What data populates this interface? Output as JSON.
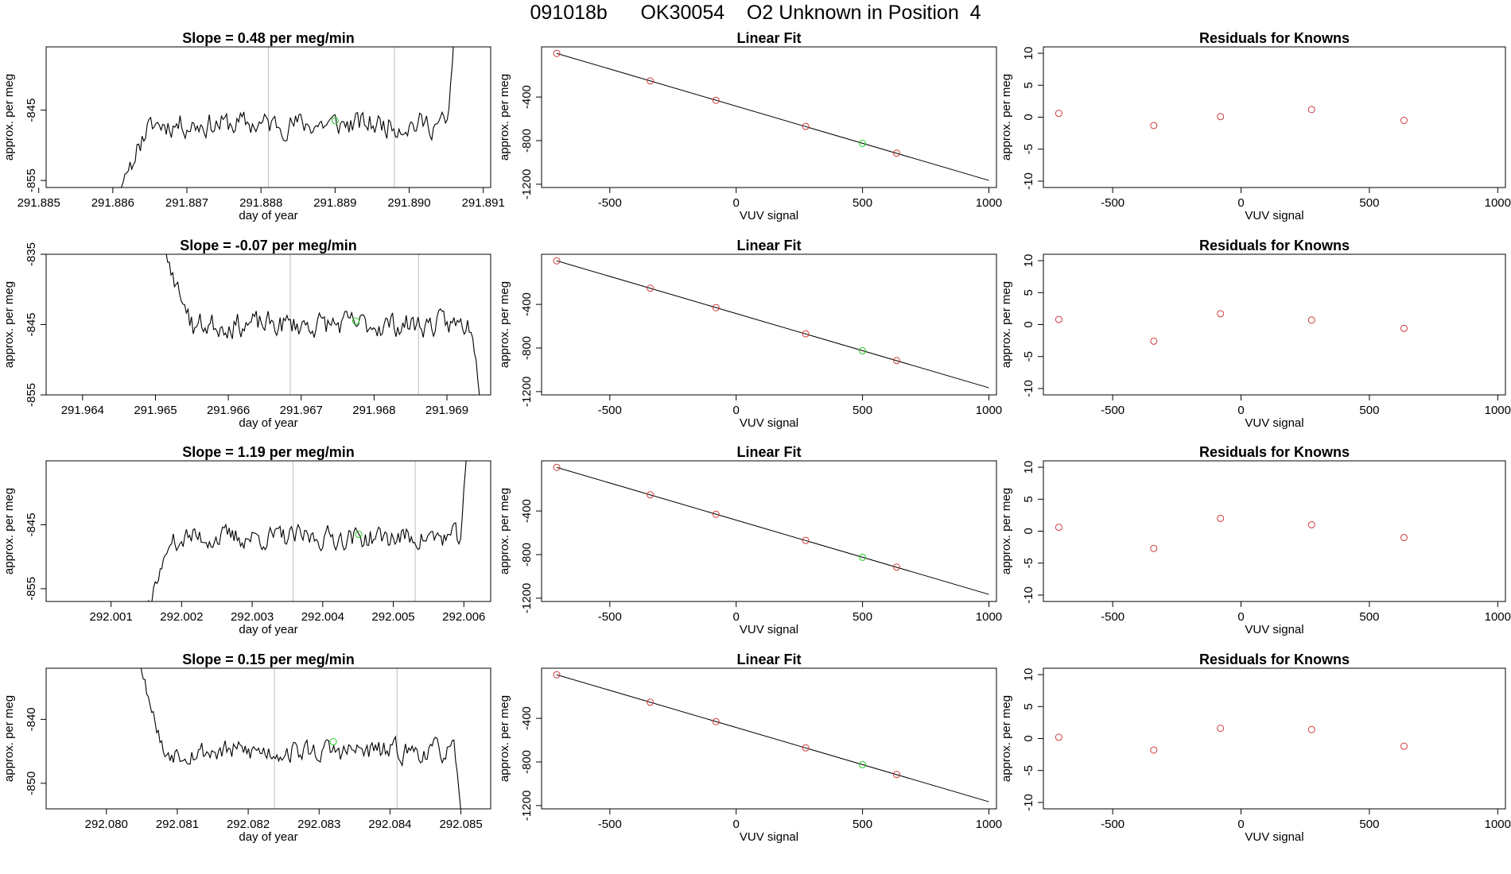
{
  "page_title": "091018b      OK30054    O2 Unknown in Position  4",
  "colors": {
    "line": "#000000",
    "known": "#cd3b3b",
    "unknown": "#22cc22",
    "vline": "#bdbdbd",
    "axis": "#000000"
  },
  "chart_data": [
    {
      "type": "line",
      "panel": "time",
      "row": 0,
      "title": "Slope =  0.48  per meg/min",
      "xlabel": "day of year",
      "ylabel": "approx. per meg",
      "xlim": [
        291.8851,
        291.8911
      ],
      "ylim": [
        -856,
        -836
      ],
      "xticks": [
        291.885,
        291.886,
        291.887,
        291.888,
        291.889,
        291.89,
        291.891
      ],
      "xtick_labels": [
        "291.885",
        "291.886",
        "291.887",
        "291.888",
        "291.889",
        "291.890",
        "291.891"
      ],
      "yticks": [
        -845,
        -855
      ],
      "ytick_labels": [
        "-845",
        "-855"
      ],
      "vlines": [
        291.8881,
        291.8898
      ],
      "start": 291.886,
      "end": 291.89063,
      "n": 200,
      "base": -847,
      "noise": 2.8,
      "seed": 11,
      "rise": {
        "from": -858,
        "t_end": 291.8865
      },
      "tail": {
        "t": 291.89053,
        "to": -830
      },
      "unknown_point": {
        "x": 291.889,
        "y": -846.5
      }
    },
    {
      "type": "scatter",
      "panel": "fit",
      "row": 0,
      "title": "Linear Fit",
      "xlabel": "VUV signal",
      "ylabel": "approx. per meg",
      "xlim": [
        -770,
        1030
      ],
      "ylim": [
        -1230,
        60
      ],
      "xticks": [
        -500,
        0,
        500,
        1000
      ],
      "xtick_labels": [
        "-500",
        "0",
        "500",
        "1000"
      ],
      "yticks": [
        -400,
        -800,
        -1200
      ],
      "ytick_labels": [
        "-400",
        "-800",
        "-1200"
      ],
      "fit_line": {
        "x": [
          -710,
          1000
        ],
        "y": [
          0,
          -1165
        ]
      },
      "known_points": {
        "x": [
          -710,
          -340,
          -80,
          275,
          635
        ],
        "y": [
          0,
          -252,
          -430,
          -670,
          -915
        ]
      },
      "unknown_point": {
        "x": 500,
        "y": -825
      }
    },
    {
      "type": "scatter",
      "panel": "residuals",
      "row": 0,
      "title": "Residuals for Knowns",
      "xlabel": "VUV signal",
      "ylabel": "approx. per meg",
      "xlim": [
        -770,
        1030
      ],
      "ylim": [
        -11,
        11
      ],
      "xticks": [
        -500,
        0,
        500,
        1000
      ],
      "xtick_labels": [
        "-500",
        "0",
        "500",
        "1000"
      ],
      "yticks": [
        10,
        5,
        0,
        -5,
        -10
      ],
      "ytick_labels": [
        "10",
        "5",
        "0",
        "-5",
        "-10"
      ],
      "points": {
        "x": [
          -710,
          -340,
          -80,
          275,
          635
        ],
        "y": [
          0.6,
          -1.3,
          0.1,
          1.2,
          -0.5
        ]
      }
    },
    {
      "type": "line",
      "panel": "time",
      "row": 1,
      "title": "Slope =  -0.07  per meg/min",
      "xlabel": "day of year",
      "ylabel": "approx. per meg",
      "xlim": [
        291.9635,
        291.9696
      ],
      "ylim": [
        -855,
        -835
      ],
      "xticks": [
        291.964,
        291.965,
        291.966,
        291.967,
        291.968,
        291.969
      ],
      "xtick_labels": [
        "291.964",
        "291.965",
        "291.966",
        "291.967",
        "291.968",
        "291.969"
      ],
      "yticks": [
        -835,
        -845,
        -855
      ],
      "ytick_labels": [
        "-835",
        "-845",
        "-855"
      ],
      "vlines": [
        291.96685,
        291.96861
      ],
      "start": 291.96505,
      "end": 291.96947,
      "n": 190,
      "base": -845,
      "noise": 2.8,
      "seed": 23,
      "rise": {
        "from": -833,
        "t_end": 291.9655
      },
      "tail": {
        "t": 291.96935,
        "to": -857
      },
      "unknown_point": {
        "x": 291.96775,
        "y": -844.5
      }
    },
    {
      "type": "scatter",
      "panel": "fit",
      "row": 1,
      "title": "Linear Fit",
      "xlabel": "VUV signal",
      "ylabel": "approx. per meg",
      "xlim": [
        -770,
        1030
      ],
      "ylim": [
        -1230,
        60
      ],
      "xticks": [
        -500,
        0,
        500,
        1000
      ],
      "xtick_labels": [
        "-500",
        "0",
        "500",
        "1000"
      ],
      "yticks": [
        -400,
        -800,
        -1200
      ],
      "ytick_labels": [
        "-400",
        "-800",
        "-1200"
      ],
      "fit_line": {
        "x": [
          -710,
          1000
        ],
        "y": [
          0,
          -1165
        ]
      },
      "known_points": {
        "x": [
          -710,
          -340,
          -80,
          275,
          635
        ],
        "y": [
          0,
          -252,
          -430,
          -670,
          -915
        ]
      },
      "unknown_point": {
        "x": 500,
        "y": -825
      }
    },
    {
      "type": "scatter",
      "panel": "residuals",
      "row": 1,
      "title": "Residuals for Knowns",
      "xlabel": "VUV signal",
      "ylabel": "approx. per meg",
      "xlim": [
        -770,
        1030
      ],
      "ylim": [
        -11,
        11
      ],
      "xticks": [
        -500,
        0,
        500,
        1000
      ],
      "xtick_labels": [
        "-500",
        "0",
        "500",
        "1000"
      ],
      "yticks": [
        10,
        5,
        0,
        -5,
        -10
      ],
      "ytick_labels": [
        "10",
        "5",
        "0",
        "-5",
        "-10"
      ],
      "points": {
        "x": [
          -710,
          -340,
          -80,
          275,
          635
        ],
        "y": [
          0.8,
          -2.6,
          1.7,
          0.7,
          -0.6
        ]
      }
    },
    {
      "type": "line",
      "panel": "time",
      "row": 2,
      "title": "Slope =  1.19  per meg/min",
      "xlabel": "day of year",
      "ylabel": "approx. per meg",
      "xlim": [
        292.00008,
        292.00638
      ],
      "ylim": [
        -857,
        -835
      ],
      "xticks": [
        292.001,
        292.002,
        292.003,
        292.004,
        292.005,
        292.006
      ],
      "xtick_labels": [
        "292.001",
        "292.002",
        "292.003",
        "292.004",
        "292.005",
        "292.006"
      ],
      "yticks": [
        -845,
        -855
      ],
      "ytick_labels": [
        "-845",
        "-855"
      ],
      "vlines": [
        292.00358,
        292.00531
      ],
      "start": 292.00144,
      "end": 292.00607,
      "n": 200,
      "base": -847,
      "noise": 2.8,
      "seed": 37,
      "rise": {
        "from": -860,
        "t_end": 292.0019
      },
      "tail": {
        "t": 292.00595,
        "to": -830
      },
      "unknown_point": {
        "x": 292.00451,
        "y": -846.5
      }
    },
    {
      "type": "scatter",
      "panel": "fit",
      "row": 2,
      "title": "Linear Fit",
      "xlabel": "VUV signal",
      "ylabel": "approx. per meg",
      "xlim": [
        -770,
        1030
      ],
      "ylim": [
        -1230,
        60
      ],
      "xticks": [
        -500,
        0,
        500,
        1000
      ],
      "xtick_labels": [
        "-500",
        "0",
        "500",
        "1000"
      ],
      "yticks": [
        -400,
        -800,
        -1200
      ],
      "ytick_labels": [
        "-400",
        "-800",
        "-1200"
      ],
      "fit_line": {
        "x": [
          -710,
          1000
        ],
        "y": [
          0,
          -1165
        ]
      },
      "known_points": {
        "x": [
          -710,
          -340,
          -80,
          275,
          635
        ],
        "y": [
          0,
          -252,
          -430,
          -670,
          -915
        ]
      },
      "unknown_point": {
        "x": 500,
        "y": -825
      }
    },
    {
      "type": "scatter",
      "panel": "residuals",
      "row": 2,
      "title": "Residuals for Knowns",
      "xlabel": "VUV signal",
      "ylabel": "approx. per meg",
      "xlim": [
        -770,
        1030
      ],
      "ylim": [
        -11,
        11
      ],
      "xticks": [
        -500,
        0,
        500,
        1000
      ],
      "xtick_labels": [
        "-500",
        "0",
        "500",
        "1000"
      ],
      "yticks": [
        10,
        5,
        0,
        -5,
        -10
      ],
      "ytick_labels": [
        "10",
        "5",
        "0",
        "-5",
        "-10"
      ],
      "points": {
        "x": [
          -710,
          -340,
          -80,
          275,
          635
        ],
        "y": [
          0.6,
          -2.7,
          2.0,
          1.0,
          -1.0
        ]
      }
    },
    {
      "type": "line",
      "panel": "time",
      "row": 3,
      "title": "Slope =  0.15  per meg/min",
      "xlabel": "day of year",
      "ylabel": "approx. per meg",
      "xlim": [
        292.07915,
        292.08542
      ],
      "ylim": [
        -854,
        -832
      ],
      "xticks": [
        292.08,
        292.081,
        292.082,
        292.083,
        292.084,
        292.085
      ],
      "xtick_labels": [
        "292.080",
        "292.081",
        "292.082",
        "292.083",
        "292.084",
        "292.085"
      ],
      "yticks": [
        -840,
        -850
      ],
      "ytick_labels": [
        "-840",
        "-850"
      ],
      "vlines": [
        292.08237,
        292.0841
      ],
      "start": 292.08045,
      "end": 292.08502,
      "n": 195,
      "base": -845,
      "noise": 2.8,
      "seed": 53,
      "rise": {
        "from": -830,
        "t_end": 292.0808
      },
      "tail": {
        "t": 292.0849,
        "to": -856
      },
      "unknown_point": {
        "x": 292.0832,
        "y": -843.5
      }
    },
    {
      "type": "scatter",
      "panel": "fit",
      "row": 3,
      "title": "Linear Fit",
      "xlabel": "VUV signal",
      "ylabel": "approx. per meg",
      "xlim": [
        -770,
        1030
      ],
      "ylim": [
        -1230,
        60
      ],
      "xticks": [
        -500,
        0,
        500,
        1000
      ],
      "xtick_labels": [
        "-500",
        "0",
        "500",
        "1000"
      ],
      "yticks": [
        -400,
        -800,
        -1200
      ],
      "ytick_labels": [
        "-400",
        "-800",
        "-1200"
      ],
      "fit_line": {
        "x": [
          -710,
          1000
        ],
        "y": [
          0,
          -1165
        ]
      },
      "known_points": {
        "x": [
          -710,
          -340,
          -80,
          275,
          635
        ],
        "y": [
          0,
          -252,
          -430,
          -670,
          -915
        ]
      },
      "unknown_point": {
        "x": 500,
        "y": -825
      }
    },
    {
      "type": "scatter",
      "panel": "residuals",
      "row": 3,
      "title": "Residuals for Knowns",
      "xlabel": "VUV signal",
      "ylabel": "approx. per meg",
      "xlim": [
        -770,
        1030
      ],
      "ylim": [
        -11,
        11
      ],
      "xticks": [
        -500,
        0,
        500,
        1000
      ],
      "xtick_labels": [
        "-500",
        "0",
        "500",
        "1000"
      ],
      "yticks": [
        10,
        5,
        0,
        -5,
        -10
      ],
      "ytick_labels": [
        "10",
        "5",
        "0",
        "-5",
        "-10"
      ],
      "points": {
        "x": [
          -710,
          -340,
          -80,
          275,
          635
        ],
        "y": [
          0.2,
          -1.8,
          1.6,
          1.4,
          -1.2
        ]
      }
    }
  ]
}
